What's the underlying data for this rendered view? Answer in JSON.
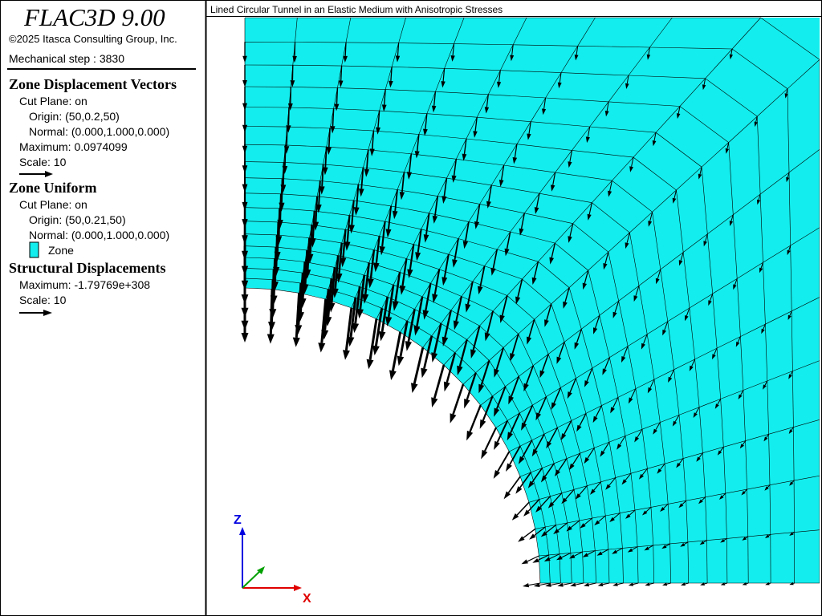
{
  "header": {
    "app_title": "FLAC3D 9.00",
    "copyright": "©2025 Itasca Consulting Group, Inc.",
    "step": "Mechanical step : 3830"
  },
  "plot_title": "Lined Circular Tunnel in an Elastic Medium with Anisotropic Stresses",
  "legend": {
    "vectors": {
      "heading": "Zone Displacement Vectors",
      "cut_plane": "Cut Plane: on",
      "origin": "Origin: (50,0.2,50)",
      "normal": "Normal: (0.000,1.000,0.000)",
      "maximum": "Maximum: 0.0974099",
      "scale": "Scale: 10"
    },
    "uniform": {
      "heading": "Zone Uniform",
      "cut_plane": "Cut Plane: on",
      "origin": "Origin: (50,0.21,50)",
      "normal": "Normal: (0.000,1.000,0.000)",
      "zone": "Zone"
    },
    "structural": {
      "heading": "Structural Displacements",
      "maximum": "Maximum: -1.79769e+308",
      "scale": "Scale: 10"
    }
  },
  "axes": {
    "z": "Z",
    "x": "X"
  }
}
